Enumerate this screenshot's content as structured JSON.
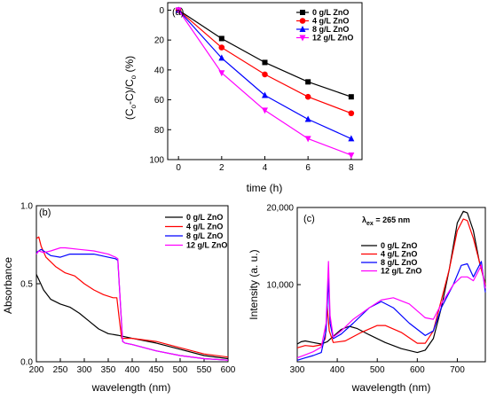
{
  "chart_data": [
    {
      "type": "line",
      "panel_label": "(a)",
      "xlabel": "time (h)",
      "ylabel": "(Cₒ-C)/Cₒ (%)",
      "xlim": [
        -0.5,
        8.5
      ],
      "ylim": [
        -5,
        100
      ],
      "y_inverted": true,
      "x_ticks": [
        "0",
        "2",
        "4",
        "6",
        "8"
      ],
      "y_ticks": [
        "0",
        "20",
        "40",
        "60",
        "80",
        "100"
      ],
      "legend_position": "top-right",
      "x": [
        0,
        2,
        4,
        6,
        8
      ],
      "series": [
        {
          "name": "0 g/L ZnO",
          "color": "#000000",
          "marker": "square",
          "values": [
            0,
            19,
            35,
            48,
            58
          ]
        },
        {
          "name": "4 g/L ZnO",
          "color": "#ff0000",
          "marker": "circle",
          "values": [
            0,
            25,
            43,
            58,
            69
          ]
        },
        {
          "name": "8 g/L ZnO",
          "color": "#0000ff",
          "marker": "triangle-up",
          "values": [
            0,
            32,
            57,
            73,
            86
          ]
        },
        {
          "name": "12 g/L ZnO",
          "color": "#ff00ff",
          "marker": "triangle-down",
          "values": [
            0,
            42,
            67,
            86,
            97
          ]
        }
      ]
    },
    {
      "type": "line",
      "panel_label": "(b)",
      "xlabel": "wavelength (nm)",
      "ylabel": "Absorbance",
      "xlim": [
        200,
        600
      ],
      "ylim": [
        0,
        1.0
      ],
      "x_ticks": [
        "200",
        "250",
        "300",
        "350",
        "400",
        "450",
        "500",
        "550",
        "600"
      ],
      "y_ticks": [
        "0.0",
        "0.5",
        "1.0"
      ],
      "legend_position": "top-right",
      "series": [
        {
          "name": "0 g/L ZnO",
          "color": "#000000",
          "x": [
            200,
            215,
            230,
            250,
            270,
            290,
            310,
            330,
            350,
            370,
            400,
            450,
            500,
            550,
            600
          ],
          "y": [
            0.56,
            0.46,
            0.4,
            0.37,
            0.35,
            0.31,
            0.26,
            0.21,
            0.18,
            0.17,
            0.15,
            0.12,
            0.08,
            0.04,
            0.02
          ]
        },
        {
          "name": "4 g/L ZnO",
          "color": "#ff0000",
          "x": [
            200,
            205,
            210,
            220,
            240,
            260,
            280,
            300,
            320,
            340,
            360,
            368,
            372,
            378,
            385,
            400,
            450,
            500,
            550,
            600
          ],
          "y": [
            0.79,
            0.8,
            0.74,
            0.67,
            0.61,
            0.57,
            0.55,
            0.5,
            0.46,
            0.43,
            0.41,
            0.41,
            0.3,
            0.15,
            0.15,
            0.15,
            0.13,
            0.09,
            0.05,
            0.03
          ]
        },
        {
          "name": "8 g/L ZnO",
          "color": "#0000ff",
          "x": [
            200,
            210,
            220,
            230,
            250,
            270,
            290,
            320,
            350,
            365,
            370,
            380,
            385,
            400,
            450,
            500,
            550,
            600
          ],
          "y": [
            0.7,
            0.72,
            0.7,
            0.68,
            0.67,
            0.69,
            0.69,
            0.69,
            0.67,
            0.66,
            0.65,
            0.13,
            0.12,
            0.11,
            0.07,
            0.04,
            0.02,
            0.01
          ]
        },
        {
          "name": "12 g/L ZnO",
          "color": "#ff00ff",
          "x": [
            200,
            205,
            215,
            230,
            250,
            260,
            290,
            320,
            350,
            365,
            370,
            380,
            385,
            400,
            450,
            500,
            550,
            600
          ],
          "y": [
            0.69,
            0.71,
            0.7,
            0.71,
            0.73,
            0.73,
            0.72,
            0.71,
            0.69,
            0.67,
            0.66,
            0.13,
            0.12,
            0.11,
            0.07,
            0.04,
            0.02,
            0.01
          ]
        }
      ]
    },
    {
      "type": "line",
      "panel_label": "(c)",
      "annotation": "λ",
      "annotation_sub": "ex",
      "annotation_rest": " = 265 nm",
      "xlabel": "wavelength (nm)",
      "ylabel": "Intensity (a. u.)",
      "xlim": [
        300,
        770
      ],
      "ylim": [
        0,
        20000
      ],
      "x_ticks": [
        "300",
        "400",
        "500",
        "600",
        "700"
      ],
      "y_ticks": [
        "10,000",
        "20,000"
      ],
      "legend_position": "top-center",
      "series": [
        {
          "name": "0 g/L ZnO",
          "color": "#000000",
          "x": [
            300,
            310,
            320,
            340,
            360,
            375,
            390,
            410,
            430,
            450,
            480,
            520,
            560,
            600,
            620,
            640,
            660,
            680,
            700,
            715,
            725,
            740,
            755,
            770
          ],
          "y": [
            2300,
            2600,
            2700,
            2500,
            2300,
            2600,
            3300,
            4200,
            4600,
            4300,
            3500,
            2500,
            1700,
            1200,
            1500,
            3000,
            7000,
            12000,
            18000,
            19500,
            19300,
            17000,
            13000,
            10000
          ]
        },
        {
          "name": "4 g/L ZnO",
          "color": "#ff0000",
          "x": [
            300,
            320,
            340,
            360,
            370,
            375,
            380,
            390,
            420,
            460,
            500,
            520,
            560,
            600,
            620,
            640,
            660,
            680,
            700,
            715,
            725,
            740,
            755,
            770
          ],
          "y": [
            1800,
            2100,
            2000,
            2200,
            3000,
            7200,
            4000,
            2500,
            2700,
            3800,
            4700,
            4700,
            3800,
            2400,
            2400,
            4000,
            8000,
            12000,
            17000,
            18500,
            18300,
            16000,
            13000,
            10000
          ]
        },
        {
          "name": "8 g/L ZnO",
          "color": "#0000ff",
          "x": [
            300,
            320,
            340,
            360,
            372,
            378,
            382,
            390,
            410,
            440,
            480,
            510,
            540,
            580,
            620,
            640,
            660,
            690,
            710,
            725,
            740,
            760,
            770
          ],
          "y": [
            200,
            500,
            800,
            1200,
            4000,
            10900,
            5000,
            3000,
            3600,
            5000,
            7000,
            7800,
            7000,
            5000,
            3400,
            4000,
            7000,
            10000,
            12500,
            12700,
            11000,
            13000,
            9000
          ]
        },
        {
          "name": "12 g/L ZnO",
          "color": "#ff00ff",
          "x": [
            300,
            320,
            340,
            360,
            372,
            378,
            382,
            390,
            410,
            440,
            480,
            510,
            540,
            580,
            620,
            640,
            660,
            690,
            710,
            725,
            740,
            760,
            770
          ],
          "y": [
            500,
            900,
            1300,
            1900,
            5000,
            13000,
            6000,
            3200,
            4000,
            5500,
            7000,
            8000,
            8300,
            7500,
            5700,
            5500,
            7500,
            10000,
            11000,
            11000,
            10500,
            12500,
            9500
          ]
        }
      ]
    }
  ]
}
